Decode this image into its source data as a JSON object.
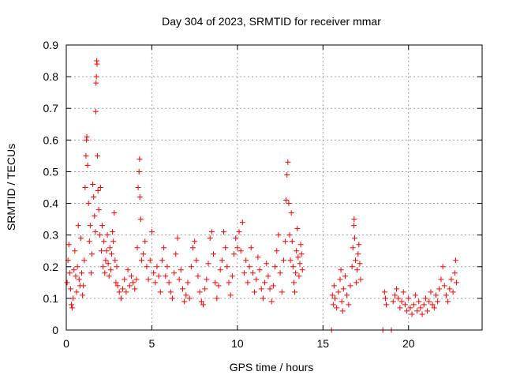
{
  "chart_data": {
    "type": "scatter",
    "title": "Day 304 of 2023, SRMTID for receiver mmar",
    "xlabel": "GPS time / hours",
    "ylabel": "SRMTID / TECUs",
    "xlim": [
      0,
      24.3
    ],
    "ylim": [
      0,
      0.9
    ],
    "xticks": [
      "0",
      "5",
      "10",
      "15",
      "20"
    ],
    "yticks": [
      "0",
      "0.1",
      "0.2",
      "0.3",
      "0.4",
      "0.5",
      "0.6",
      "0.7",
      "0.8",
      "0.9"
    ],
    "grid": true,
    "marker": "+",
    "color": "#ff0000",
    "series": [
      {
        "name": "SRMTID",
        "points": [
          [
            0.05,
            0.15
          ],
          [
            0.1,
            0.22
          ],
          [
            0.15,
            0.27
          ],
          [
            0.2,
            0.18
          ],
          [
            0.25,
            0.13
          ],
          [
            0.3,
            0.08
          ],
          [
            0.35,
            0.07
          ],
          [
            0.4,
            0.1
          ],
          [
            0.45,
            0.19
          ],
          [
            0.5,
            0.25
          ],
          [
            0.55,
            0.17
          ],
          [
            0.6,
            0.12
          ],
          [
            0.65,
            0.2
          ],
          [
            0.7,
            0.33
          ],
          [
            0.75,
            0.16
          ],
          [
            0.8,
            0.14
          ],
          [
            0.85,
            0.29
          ],
          [
            0.9,
            0.18
          ],
          [
            0.95,
            0.11
          ],
          [
            1.0,
            0.14
          ],
          [
            1.05,
            0.22
          ],
          [
            1.1,
            0.45
          ],
          [
            1.15,
            0.55
          ],
          [
            1.18,
            0.6
          ],
          [
            1.2,
            0.61
          ],
          [
            1.25,
            0.52
          ],
          [
            1.3,
            0.4
          ],
          [
            1.35,
            0.28
          ],
          [
            1.4,
            0.33
          ],
          [
            1.45,
            0.18
          ],
          [
            1.5,
            0.24
          ],
          [
            1.55,
            0.46
          ],
          [
            1.6,
            0.42
          ],
          [
            1.65,
            0.36
          ],
          [
            1.7,
            0.31
          ],
          [
            1.72,
            0.69
          ],
          [
            1.74,
            0.78
          ],
          [
            1.76,
            0.8
          ],
          [
            1.78,
            0.85
          ],
          [
            1.8,
            0.84
          ],
          [
            1.82,
            0.55
          ],
          [
            1.85,
            0.44
          ],
          [
            1.9,
            0.38
          ],
          [
            1.95,
            0.3
          ],
          [
            2.0,
            0.45
          ],
          [
            2.05,
            0.25
          ],
          [
            2.1,
            0.33
          ],
          [
            2.15,
            0.2
          ],
          [
            2.2,
            0.28
          ],
          [
            2.25,
            0.18
          ],
          [
            2.3,
            0.22
          ],
          [
            2.35,
            0.25
          ],
          [
            2.4,
            0.3
          ],
          [
            2.45,
            0.21
          ],
          [
            2.5,
            0.17
          ],
          [
            2.55,
            0.26
          ],
          [
            2.6,
            0.19
          ],
          [
            2.65,
            0.24
          ],
          [
            2.7,
            0.31
          ],
          [
            2.75,
            0.28
          ],
          [
            2.8,
            0.37
          ],
          [
            2.85,
            0.22
          ],
          [
            2.9,
            0.15
          ],
          [
            2.95,
            0.2
          ],
          [
            3.0,
            0.14
          ],
          [
            3.1,
            0.12
          ],
          [
            3.2,
            0.1
          ],
          [
            3.3,
            0.13
          ],
          [
            3.4,
            0.16
          ],
          [
            3.5,
            0.12
          ],
          [
            3.6,
            0.19
          ],
          [
            3.7,
            0.14
          ],
          [
            3.8,
            0.17
          ],
          [
            3.9,
            0.15
          ],
          [
            4.0,
            0.13
          ],
          [
            4.1,
            0.16
          ],
          [
            4.15,
            0.26
          ],
          [
            4.2,
            0.45
          ],
          [
            4.25,
            0.5
          ],
          [
            4.28,
            0.54
          ],
          [
            4.3,
            0.42
          ],
          [
            4.35,
            0.35
          ],
          [
            4.4,
            0.22
          ],
          [
            4.5,
            0.24
          ],
          [
            4.6,
            0.28
          ],
          [
            4.7,
            0.2
          ],
          [
            4.8,
            0.16
          ],
          [
            4.9,
            0.22
          ],
          [
            5.0,
            0.31
          ],
          [
            5.1,
            0.18
          ],
          [
            5.2,
            0.15
          ],
          [
            5.3,
            0.2
          ],
          [
            5.4,
            0.17
          ],
          [
            5.5,
            0.12
          ],
          [
            5.6,
            0.22
          ],
          [
            5.7,
            0.26
          ],
          [
            5.8,
            0.17
          ],
          [
            5.9,
            0.2
          ],
          [
            6.0,
            0.15
          ],
          [
            6.1,
            0.12
          ],
          [
            6.2,
            0.1
          ],
          [
            6.3,
            0.18
          ],
          [
            6.4,
            0.24
          ],
          [
            6.5,
            0.29
          ],
          [
            6.6,
            0.16
          ],
          [
            6.7,
            0.19
          ],
          [
            6.8,
            0.13
          ],
          [
            6.9,
            0.09
          ],
          [
            7.0,
            0.11
          ],
          [
            7.1,
            0.15
          ],
          [
            7.2,
            0.1
          ],
          [
            7.3,
            0.2
          ],
          [
            7.4,
            0.26
          ],
          [
            7.5,
            0.28
          ],
          [
            7.6,
            0.22
          ],
          [
            7.7,
            0.17
          ],
          [
            7.8,
            0.12
          ],
          [
            7.9,
            0.09
          ],
          [
            8.0,
            0.08
          ],
          [
            8.1,
            0.13
          ],
          [
            8.2,
            0.16
          ],
          [
            8.3,
            0.21
          ],
          [
            8.4,
            0.29
          ],
          [
            8.5,
            0.31
          ],
          [
            8.6,
            0.24
          ],
          [
            8.7,
            0.15
          ],
          [
            8.8,
            0.1
          ],
          [
            8.9,
            0.14
          ],
          [
            9.0,
            0.19
          ],
          [
            9.1,
            0.22
          ],
          [
            9.2,
            0.31
          ],
          [
            9.3,
            0.26
          ],
          [
            9.4,
            0.2
          ],
          [
            9.5,
            0.15
          ],
          [
            9.6,
            0.11
          ],
          [
            9.7,
            0.17
          ],
          [
            9.8,
            0.24
          ],
          [
            9.9,
            0.29
          ],
          [
            10.0,
            0.26
          ],
          [
            10.1,
            0.31
          ],
          [
            10.2,
            0.25
          ],
          [
            10.3,
            0.34
          ],
          [
            10.4,
            0.18
          ],
          [
            10.5,
            0.22
          ],
          [
            10.6,
            0.15
          ],
          [
            10.7,
            0.2
          ],
          [
            10.8,
            0.26
          ],
          [
            10.9,
            0.18
          ],
          [
            11.0,
            0.12
          ],
          [
            11.1,
            0.16
          ],
          [
            11.2,
            0.23
          ],
          [
            11.3,
            0.19
          ],
          [
            11.4,
            0.13
          ],
          [
            11.5,
            0.1
          ],
          [
            11.6,
            0.15
          ],
          [
            11.7,
            0.21
          ],
          [
            11.8,
            0.17
          ],
          [
            11.9,
            0.13
          ],
          [
            12.0,
            0.09
          ],
          [
            12.1,
            0.14
          ],
          [
            12.2,
            0.2
          ],
          [
            12.3,
            0.25
          ],
          [
            12.4,
            0.3
          ],
          [
            12.5,
            0.18
          ],
          [
            12.6,
            0.12
          ],
          [
            12.7,
            0.22
          ],
          [
            12.8,
            0.28
          ],
          [
            12.85,
            0.41
          ],
          [
            12.9,
            0.49
          ],
          [
            12.95,
            0.53
          ],
          [
            13.0,
            0.4
          ],
          [
            13.05,
            0.3
          ],
          [
            13.1,
            0.22
          ],
          [
            13.15,
            0.37
          ],
          [
            13.2,
            0.28
          ],
          [
            13.25,
            0.2
          ],
          [
            13.3,
            0.15
          ],
          [
            13.35,
            0.12
          ],
          [
            13.4,
            0.18
          ],
          [
            13.45,
            0.25
          ],
          [
            13.5,
            0.32
          ],
          [
            13.55,
            0.23
          ],
          [
            13.6,
            0.17
          ],
          [
            13.65,
            0.21
          ],
          [
            13.7,
            0.27
          ],
          [
            13.75,
            0.24
          ],
          [
            13.8,
            0.19
          ],
          [
            15.5,
            0.0
          ],
          [
            15.55,
            0.11
          ],
          [
            15.6,
            0.08
          ],
          [
            15.65,
            0.14
          ],
          [
            15.7,
            0.1
          ],
          [
            15.8,
            0.07
          ],
          [
            15.9,
            0.12
          ],
          [
            16.0,
            0.16
          ],
          [
            16.05,
            0.19
          ],
          [
            16.1,
            0.09
          ],
          [
            16.15,
            0.06
          ],
          [
            16.2,
            0.13
          ],
          [
            16.3,
            0.17
          ],
          [
            16.4,
            0.11
          ],
          [
            16.5,
            0.08
          ],
          [
            16.6,
            0.14
          ],
          [
            16.7,
            0.2
          ],
          [
            16.75,
            0.26
          ],
          [
            16.8,
            0.33
          ],
          [
            16.82,
            0.35
          ],
          [
            16.85,
            0.29
          ],
          [
            16.9,
            0.22
          ],
          [
            16.95,
            0.15
          ],
          [
            17.0,
            0.19
          ],
          [
            17.05,
            0.24
          ],
          [
            17.1,
            0.27
          ],
          [
            17.15,
            0.21
          ],
          [
            17.2,
            0.16
          ],
          [
            18.5,
            0.0
          ],
          [
            18.6,
            0.12
          ],
          [
            18.65,
            0.1
          ],
          [
            18.7,
            0.08
          ],
          [
            19.0,
            0.0
          ],
          [
            19.1,
            0.09
          ],
          [
            19.2,
            0.11
          ],
          [
            19.3,
            0.13
          ],
          [
            19.4,
            0.1
          ],
          [
            19.5,
            0.07
          ],
          [
            19.6,
            0.09
          ],
          [
            19.7,
            0.12
          ],
          [
            19.8,
            0.08
          ],
          [
            19.9,
            0.06
          ],
          [
            20.0,
            0.1
          ],
          [
            20.1,
            0.07
          ],
          [
            20.2,
            0.05
          ],
          [
            20.3,
            0.08
          ],
          [
            20.4,
            0.11
          ],
          [
            20.5,
            0.06
          ],
          [
            20.6,
            0.09
          ],
          [
            20.7,
            0.07
          ],
          [
            20.8,
            0.05
          ],
          [
            20.9,
            0.08
          ],
          [
            21.0,
            0.1
          ],
          [
            21.1,
            0.06
          ],
          [
            21.2,
            0.09
          ],
          [
            21.3,
            0.12
          ],
          [
            21.4,
            0.08
          ],
          [
            21.5,
            0.07
          ],
          [
            21.6,
            0.11
          ],
          [
            21.7,
            0.09
          ],
          [
            21.8,
            0.13
          ],
          [
            21.9,
            0.16
          ],
          [
            22.0,
            0.2
          ],
          [
            22.1,
            0.14
          ],
          [
            22.2,
            0.11
          ],
          [
            22.3,
            0.09
          ],
          [
            22.4,
            0.13
          ],
          [
            22.5,
            0.16
          ],
          [
            22.6,
            0.12
          ],
          [
            22.7,
            0.18
          ],
          [
            22.75,
            0.22
          ],
          [
            22.8,
            0.15
          ]
        ]
      }
    ]
  }
}
